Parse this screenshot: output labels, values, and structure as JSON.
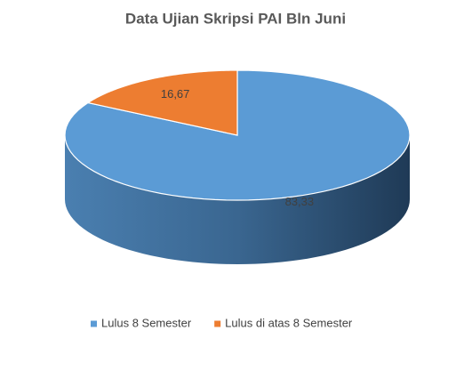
{
  "chart_data": {
    "type": "pie",
    "title": "Data Ujian Skripsi PAI Bln Juni",
    "categories": [
      "Lulus 8 Semester",
      "Lulus di atas 8 Semester"
    ],
    "values": [
      83.33,
      16.67
    ],
    "value_labels": [
      "83,33",
      "16,67"
    ],
    "colors": [
      "#5b9bd5",
      "#ed7d31"
    ],
    "legend": "bottom"
  }
}
